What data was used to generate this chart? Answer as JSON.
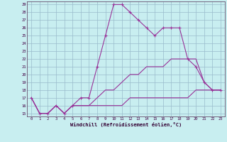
{
  "xlabel": "Windchill (Refroidissement éolien,°C)",
  "bg_color": "#c8eef0",
  "line_color": "#993399",
  "grid_color": "#99bbcc",
  "xlim_min": -0.5,
  "xlim_max": 23.5,
  "ylim_min": 14.6,
  "ylim_max": 29.4,
  "xticks": [
    0,
    1,
    2,
    3,
    4,
    5,
    6,
    7,
    8,
    9,
    10,
    11,
    12,
    13,
    14,
    15,
    16,
    17,
    18,
    19,
    20,
    21,
    22,
    23
  ],
  "yticks": [
    15,
    16,
    17,
    18,
    19,
    20,
    21,
    22,
    23,
    24,
    25,
    26,
    27,
    28,
    29
  ],
  "series": [
    {
      "x": [
        0,
        1,
        2,
        3,
        4,
        5,
        6,
        7,
        8,
        9,
        10,
        11,
        12,
        13,
        14,
        15,
        16,
        17,
        18,
        19,
        20,
        21,
        22,
        23
      ],
      "y": [
        17,
        15,
        15,
        16,
        15,
        16,
        17,
        17,
        21,
        25,
        29,
        29,
        28,
        27,
        26,
        25,
        26,
        26,
        26,
        22,
        21,
        19,
        18,
        18
      ],
      "marker": true
    },
    {
      "x": [
        0,
        1,
        2,
        3,
        4,
        5,
        6,
        7,
        8,
        9,
        10,
        11,
        12,
        13,
        14,
        15,
        16,
        17,
        18,
        19,
        20,
        21,
        22,
        23
      ],
      "y": [
        17,
        15,
        15,
        16,
        15,
        16,
        16,
        16,
        17,
        18,
        18,
        19,
        20,
        20,
        21,
        21,
        21,
        22,
        22,
        22,
        22,
        19,
        18,
        18
      ],
      "marker": false
    },
    {
      "x": [
        0,
        1,
        2,
        3,
        4,
        5,
        6,
        7,
        8,
        9,
        10,
        11,
        12,
        13,
        14,
        15,
        16,
        17,
        18,
        19,
        20,
        21,
        22,
        23
      ],
      "y": [
        17,
        15,
        15,
        16,
        15,
        16,
        16,
        16,
        16,
        16,
        16,
        16,
        17,
        17,
        17,
        17,
        17,
        17,
        17,
        17,
        18,
        18,
        18,
        18
      ],
      "marker": false
    }
  ]
}
